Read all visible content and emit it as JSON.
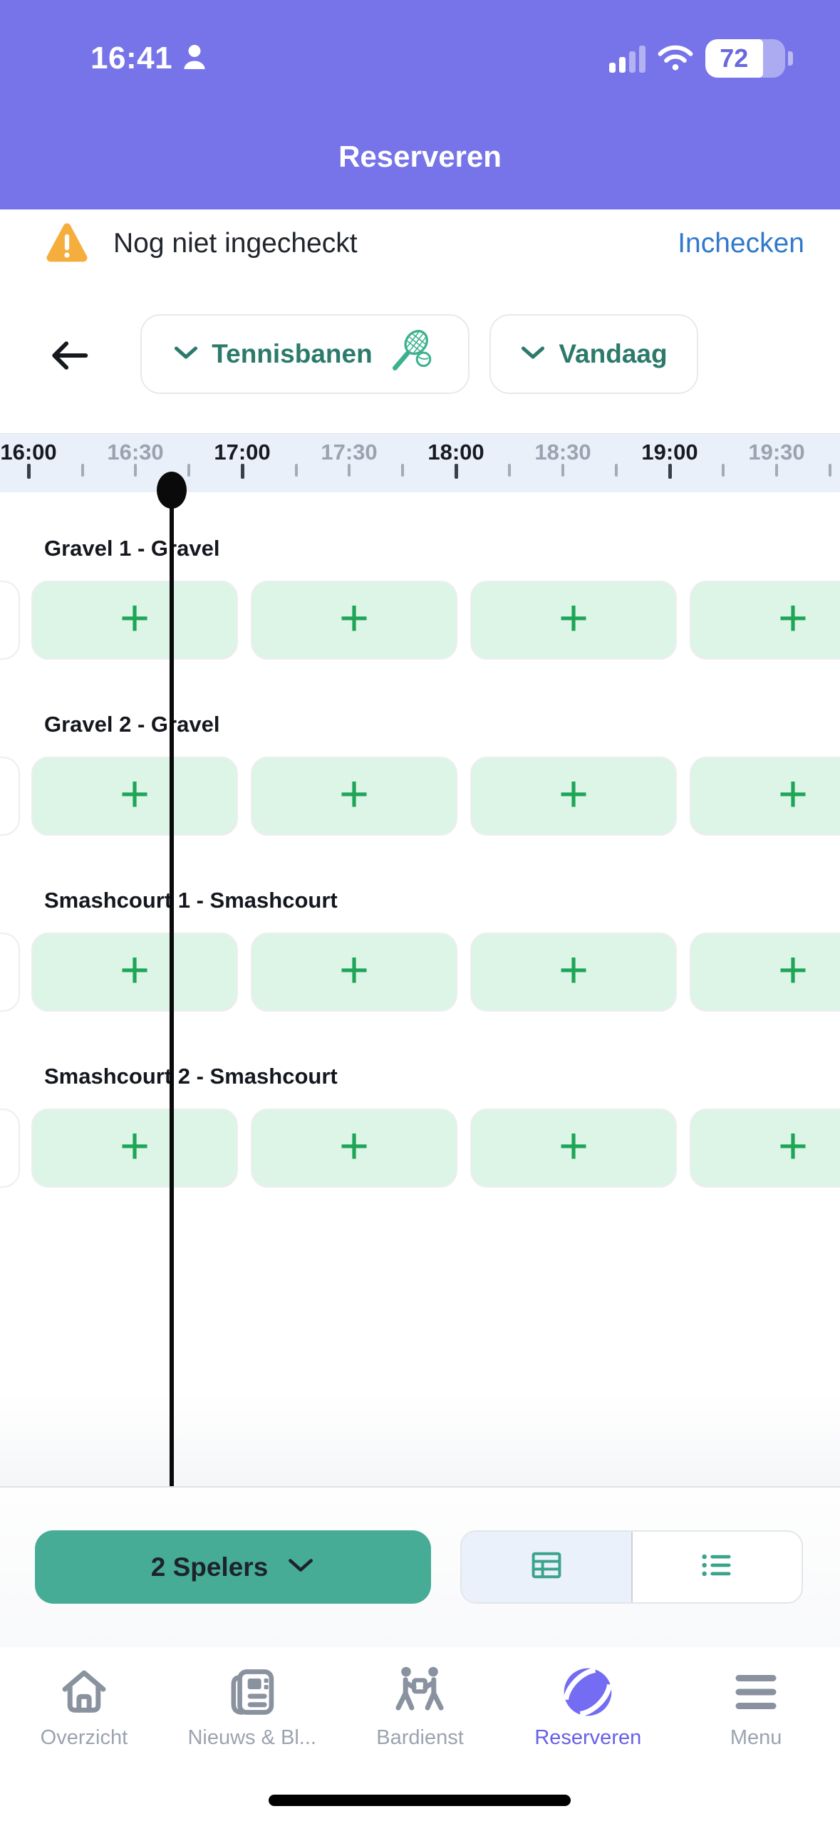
{
  "status_bar": {
    "time": "16:41",
    "battery_percent": "72"
  },
  "header": {
    "title": "Reserveren"
  },
  "checkin_banner": {
    "message": "Nog niet ingecheckt",
    "action_label": "Inchecken"
  },
  "filter_bar": {
    "sport_filter": {
      "label": "Tennisbanen"
    },
    "date_filter": {
      "label": "Vandaag"
    }
  },
  "timeline": {
    "labels": [
      {
        "text": "16:00",
        "emphasis": true
      },
      {
        "text": "16:30",
        "emphasis": false
      },
      {
        "text": "17:00",
        "emphasis": true
      },
      {
        "text": "17:30",
        "emphasis": false
      },
      {
        "text": "18:00",
        "emphasis": true
      },
      {
        "text": "18:30",
        "emphasis": false
      },
      {
        "text": "19:00",
        "emphasis": true
      },
      {
        "text": "19:30",
        "emphasis": false
      }
    ],
    "tick_count": 16,
    "current_time": "16:41"
  },
  "schedule": {
    "plus_symbol": "+",
    "courts": [
      {
        "name": "Gravel 1 - Gravel",
        "available_slots": 4
      },
      {
        "name": "Gravel 2 - Gravel",
        "available_slots": 4
      },
      {
        "name": "Smashcourt 1 - Smashcourt",
        "available_slots": 4
      },
      {
        "name": "Smashcourt 2 - Smashcourt",
        "available_slots": 4
      }
    ]
  },
  "controls": {
    "players_button_label": "2 Spelers",
    "view_toggle": {
      "selected": "grid",
      "options": [
        "grid-view",
        "list-view"
      ]
    }
  },
  "tab_bar": {
    "items": [
      {
        "label": "Overzicht",
        "active": false
      },
      {
        "label": "Nieuws & Bl...",
        "active": false
      },
      {
        "label": "Bardienst",
        "active": false
      },
      {
        "label": "Reserveren",
        "active": true
      },
      {
        "label": "Menu",
        "active": false
      }
    ]
  },
  "colors": {
    "header_purple": "#7674E8",
    "accent_teal": "#2C7A6B",
    "racket_green": "#3CB18F",
    "slot_green_bg": "#DCF5E7",
    "plus_green": "#1FA557",
    "players_button_teal": "#46AC95",
    "link_blue": "#3179CC",
    "warning_amber": "#F5AD3D",
    "active_tab_purple": "#675FE8",
    "timeline_band_blue": "#E9F0FA"
  }
}
